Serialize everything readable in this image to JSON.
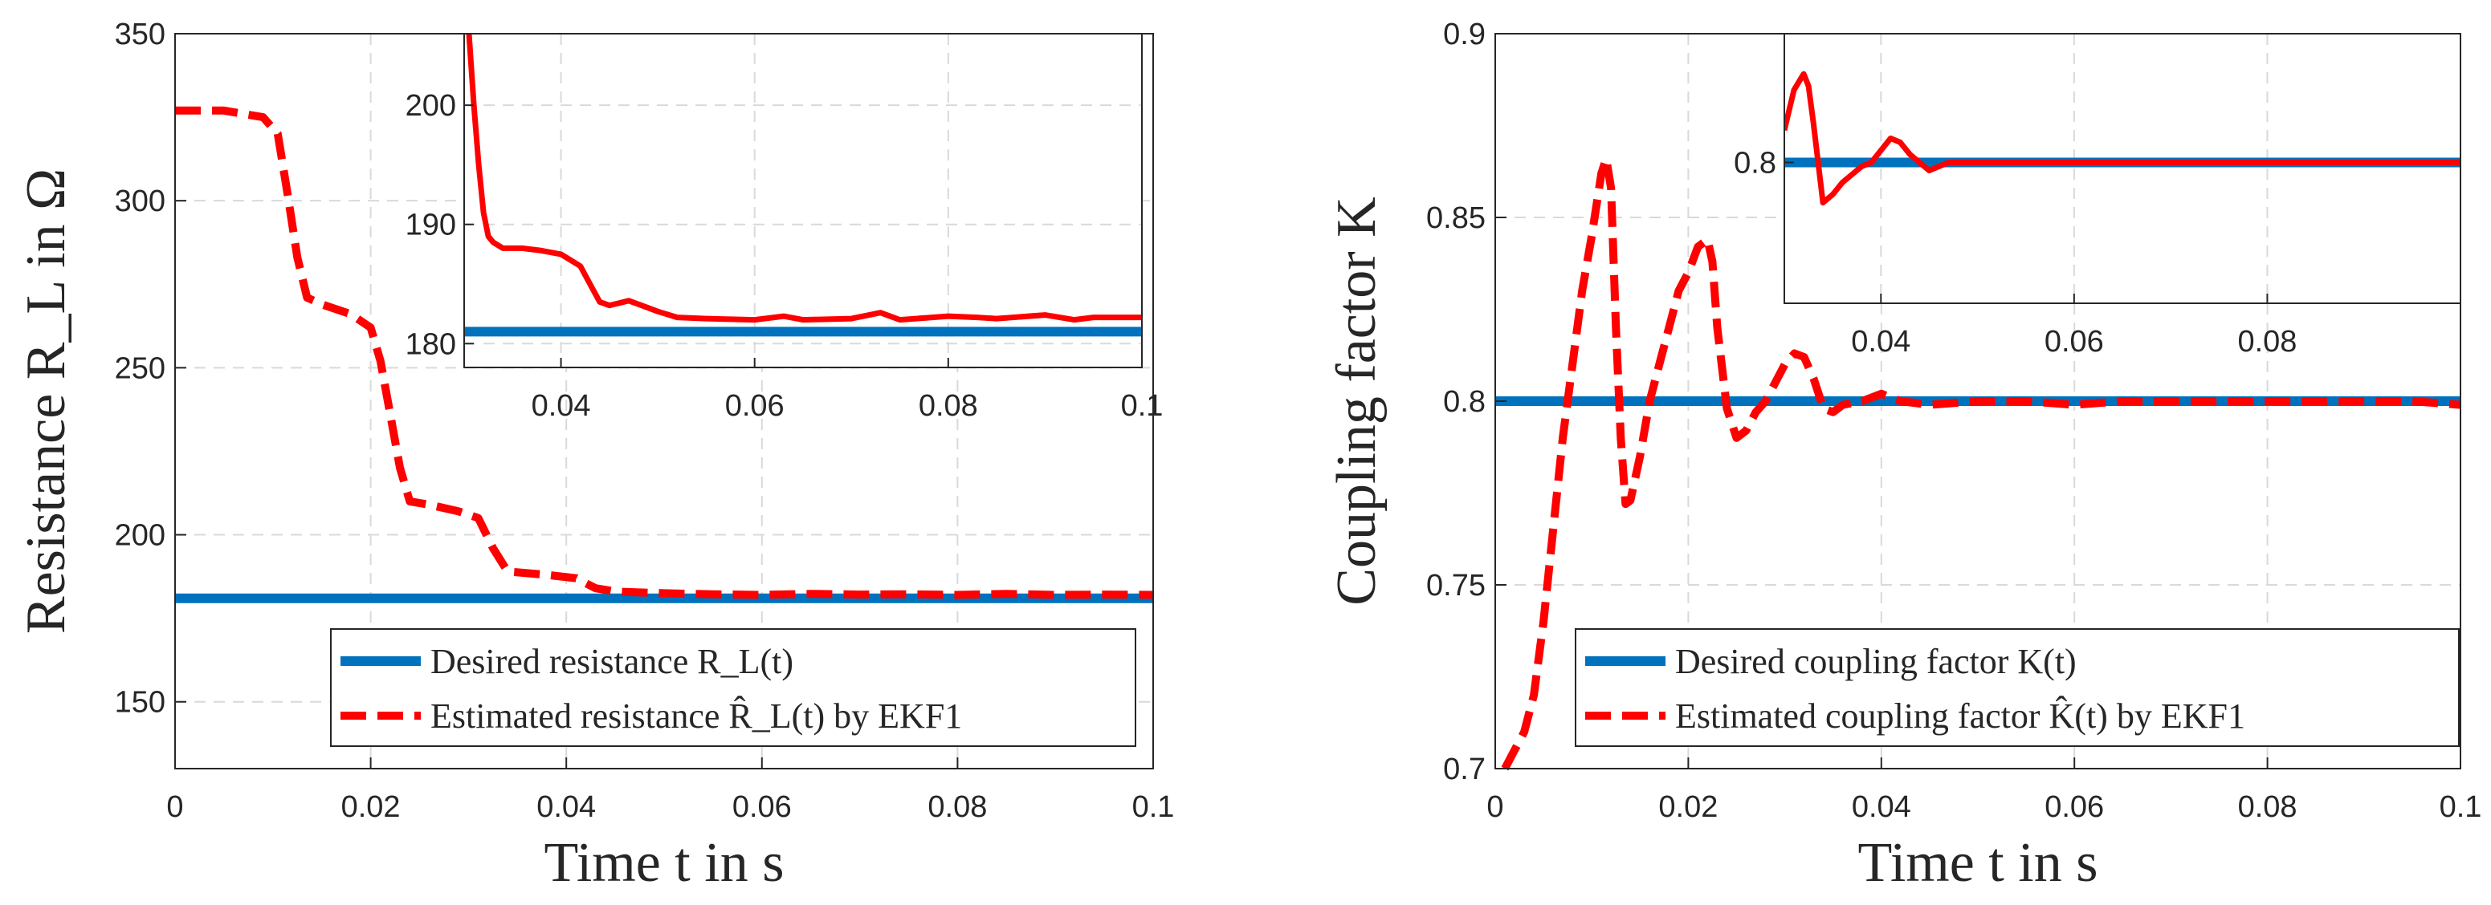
{
  "chart_data": [
    {
      "type": "line",
      "title": "",
      "xlabel": "Time t in s",
      "ylabel": "Resistance R_L in Ω",
      "xlim": [
        0,
        0.1
      ],
      "ylim": [
        130,
        350
      ],
      "xticks": [
        0,
        0.02,
        0.04,
        0.06,
        0.08,
        0.1
      ],
      "xtick_labels": [
        "0",
        "0.02",
        "0.04",
        "0.06",
        "0.08",
        "0.1"
      ],
      "yticks": [
        150,
        200,
        250,
        300,
        350
      ],
      "ytick_labels": [
        "150",
        "200",
        "250",
        "300",
        "350"
      ],
      "grid": true,
      "legend_position": "bottom-right",
      "series": [
        {
          "name": "Desired resistance R_L(t)",
          "style": "solid",
          "color": "#0072BD",
          "x": [
            0,
            0.1
          ],
          "y": [
            181,
            181
          ]
        },
        {
          "name": "Estimated resistance R̂_L(t) by EKF1",
          "style": "dashed",
          "color": "#FF0000",
          "x": [
            0,
            0.005,
            0.009,
            0.0105,
            0.0115,
            0.0125,
            0.0135,
            0.015,
            0.018,
            0.02,
            0.021,
            0.022,
            0.023,
            0.024,
            0.026,
            0.029,
            0.031,
            0.0325,
            0.034,
            0.038,
            0.041,
            0.043,
            0.045,
            0.05,
            0.055,
            0.06,
            0.065,
            0.07,
            0.075,
            0.08,
            0.085,
            0.09,
            0.095,
            0.1
          ],
          "y": [
            327,
            327,
            325,
            320,
            302,
            283,
            271,
            269,
            266,
            262,
            252,
            236,
            220,
            210,
            209,
            207,
            205,
            196,
            189,
            188,
            187,
            184,
            183,
            182.5,
            182.2,
            182,
            182.3,
            182.1,
            182.2,
            182,
            182.3,
            182,
            182.1,
            182
          ]
        }
      ],
      "inset": {
        "xlim": [
          0.03,
          0.1
        ],
        "ylim": [
          178,
          206
        ],
        "xticks": [
          0.04,
          0.06,
          0.08,
          0.1
        ],
        "xtick_labels": [
          "0.04",
          "0.06",
          "0.08",
          "0.1"
        ],
        "yticks": [
          180,
          190,
          200
        ],
        "ytick_labels": [
          "180",
          "190",
          "200"
        ],
        "desired_y": 181,
        "estimated": {
          "x": [
            0.0305,
            0.031,
            0.0315,
            0.032,
            0.0325,
            0.033,
            0.034,
            0.036,
            0.038,
            0.04,
            0.042,
            0.043,
            0.044,
            0.045,
            0.047,
            0.049,
            0.05,
            0.052,
            0.055,
            0.06,
            0.063,
            0.065,
            0.07,
            0.073,
            0.075,
            0.08,
            0.083,
            0.085,
            0.09,
            0.093,
            0.095,
            0.1
          ],
          "y": [
            206,
            200,
            195,
            191,
            189,
            188.5,
            188,
            188,
            187.8,
            187.5,
            186.5,
            185,
            183.5,
            183.2,
            183.6,
            183,
            182.7,
            182.2,
            182.1,
            182,
            182.3,
            182,
            182.1,
            182.6,
            182,
            182.3,
            182.2,
            182.1,
            182.4,
            182,
            182.2,
            182.2
          ]
        }
      }
    },
    {
      "type": "line",
      "title": "",
      "xlabel": "Time t in s",
      "ylabel": "Coupling factor K",
      "xlim": [
        0,
        0.1
      ],
      "ylim": [
        0.7,
        0.9
      ],
      "xticks": [
        0,
        0.02,
        0.04,
        0.06,
        0.08,
        0.1
      ],
      "xtick_labels": [
        "0",
        "0.02",
        "0.04",
        "0.06",
        "0.08",
        "0.1"
      ],
      "yticks": [
        0.7,
        0.75,
        0.8,
        0.85,
        0.9
      ],
      "ytick_labels": [
        "0.7",
        "0.75",
        "0.8",
        "0.85",
        "0.9"
      ],
      "grid": true,
      "legend_position": "bottom-right",
      "series": [
        {
          "name": "Desired coupling factor K(t)",
          "style": "solid",
          "color": "#0072BD",
          "x": [
            0,
            0.1
          ],
          "y": [
            0.8,
            0.8
          ]
        },
        {
          "name": "Estimated coupling factor K̂(t) by EKF1",
          "style": "dashed",
          "color": "#FF0000",
          "x": [
            0.001,
            0.002,
            0.003,
            0.004,
            0.005,
            0.006,
            0.007,
            0.008,
            0.009,
            0.01,
            0.011,
            0.0115,
            0.012,
            0.0125,
            0.013,
            0.0135,
            0.014,
            0.015,
            0.016,
            0.017,
            0.018,
            0.019,
            0.02,
            0.021,
            0.022,
            0.0225,
            0.023,
            0.024,
            0.025,
            0.026,
            0.027,
            0.028,
            0.029,
            0.03,
            0.031,
            0.032,
            0.033,
            0.034,
            0.035,
            0.036,
            0.038,
            0.04,
            0.042,
            0.045,
            0.05,
            0.055,
            0.06,
            0.065,
            0.07,
            0.075,
            0.08,
            0.085,
            0.09,
            0.095,
            0.1
          ],
          "y": [
            0.7,
            0.705,
            0.71,
            0.72,
            0.74,
            0.765,
            0.79,
            0.81,
            0.83,
            0.845,
            0.862,
            0.866,
            0.858,
            0.82,
            0.79,
            0.772,
            0.773,
            0.785,
            0.8,
            0.81,
            0.82,
            0.83,
            0.835,
            0.842,
            0.844,
            0.838,
            0.82,
            0.798,
            0.79,
            0.792,
            0.797,
            0.8,
            0.805,
            0.81,
            0.813,
            0.812,
            0.806,
            0.798,
            0.797,
            0.799,
            0.8,
            0.802,
            0.8,
            0.799,
            0.8,
            0.8,
            0.799,
            0.8,
            0.8,
            0.8,
            0.8,
            0.8,
            0.8,
            0.8,
            0.799
          ]
        }
      ],
      "inset": {
        "xlim": [
          0.03,
          0.1
        ],
        "ylim": [
          0.765,
          0.832
        ],
        "xticks": [
          0.04,
          0.06,
          0.08
        ],
        "xtick_labels": [
          "0.04",
          "0.06",
          "0.08"
        ],
        "yticks": [
          0.8
        ],
        "ytick_labels": [
          "0.8"
        ],
        "desired_y": 0.8,
        "estimated": {
          "x": [
            0.03,
            0.031,
            0.032,
            0.0325,
            0.033,
            0.0335,
            0.034,
            0.035,
            0.036,
            0.037,
            0.038,
            0.039,
            0.04,
            0.041,
            0.042,
            0.043,
            0.044,
            0.045,
            0.047,
            0.05,
            0.055,
            0.06,
            0.065,
            0.07,
            0.075,
            0.08,
            0.085,
            0.09,
            0.095,
            0.1
          ],
          "y": [
            0.808,
            0.818,
            0.822,
            0.819,
            0.81,
            0.8,
            0.79,
            0.792,
            0.795,
            0.797,
            0.799,
            0.8,
            0.803,
            0.806,
            0.805,
            0.802,
            0.8,
            0.798,
            0.8,
            0.8,
            0.8,
            0.8,
            0.8,
            0.8,
            0.8,
            0.8,
            0.8,
            0.8,
            0.8,
            0.8
          ]
        }
      }
    }
  ]
}
